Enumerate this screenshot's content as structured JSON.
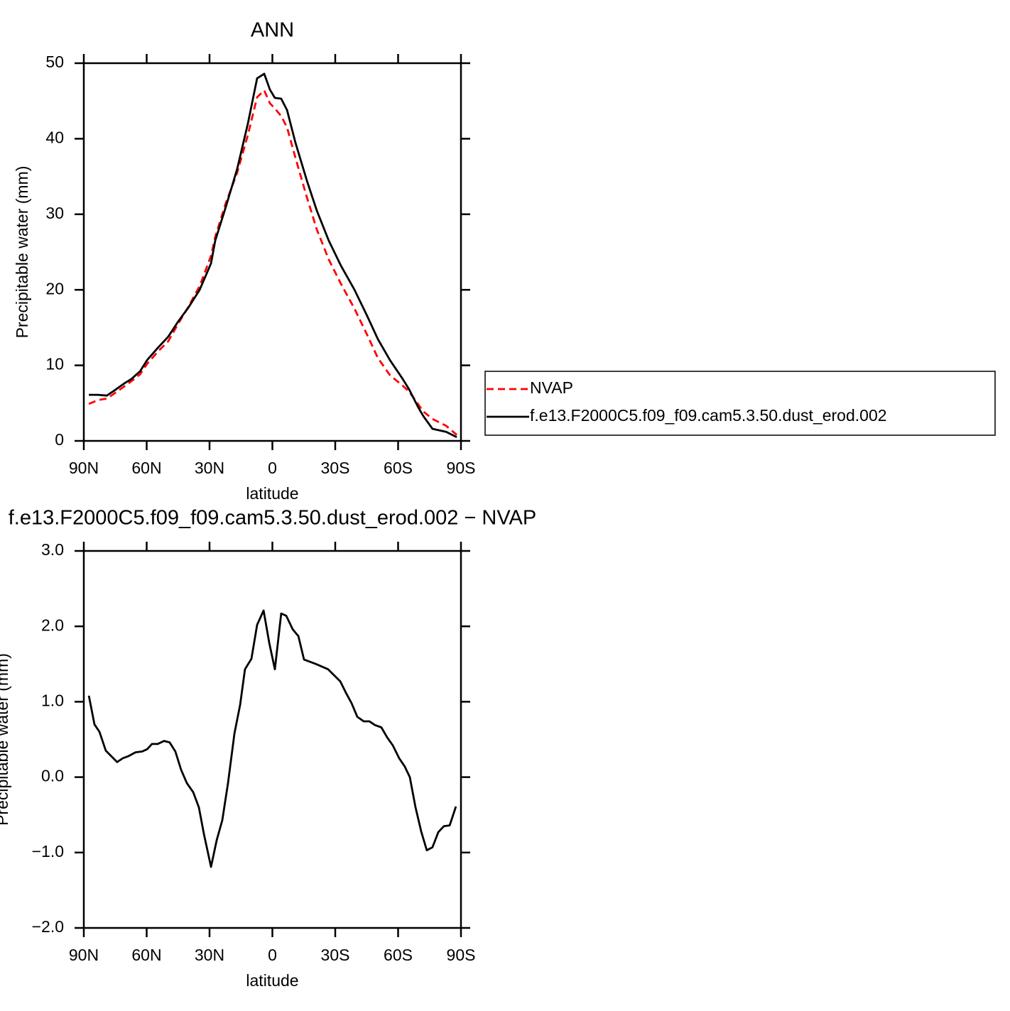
{
  "chart_data": [
    {
      "type": "line",
      "title": "ANN",
      "xlabel": "latitude",
      "ylabel": "Precipitable water (mm)",
      "x": [
        87.6,
        83.2,
        79,
        75.8,
        70.7,
        67.3,
        63.2,
        59.8,
        54.7,
        49.7,
        45,
        40.2,
        34.7,
        29.3,
        27.3,
        22.2,
        16.8,
        11.7,
        7.3,
        3.9,
        1.2,
        -1.2,
        -4.2,
        -7,
        -11,
        -16.4,
        -21.2,
        -26.9,
        -32.7,
        -39.2,
        -45.3,
        -50.3,
        -56.1,
        -62.2,
        -65.3,
        -69.7,
        -72,
        -76.4,
        -82.9,
        -88
      ],
      "series": [
        {
          "name": "NVAP",
          "color": "#ff0000",
          "line_style": "dashed",
          "values": [
            4.9,
            5.4,
            5.6,
            6.2,
            7.2,
            7.9,
            8.8,
            10.2,
            11.8,
            13.2,
            15.5,
            17.7,
            20.5,
            24.5,
            27.0,
            31.5,
            35.5,
            40.5,
            45.5,
            46.4,
            44.7,
            44.0,
            43.0,
            41.5,
            37.5,
            32.3,
            28.0,
            24.0,
            20.8,
            17.5,
            14.0,
            11.0,
            8.7,
            7.3,
            6.5,
            4.8,
            3.9,
            2.9,
            2.0,
            0.8
          ]
        },
        {
          "name": "f.e13.F2000C5.f09_f09.cam5.3.50.dust_erod.002",
          "color": "#000000",
          "line_style": "solid",
          "values": [
            6.1,
            6.1,
            6.0,
            6.6,
            7.6,
            8.2,
            9.2,
            10.7,
            12.3,
            13.8,
            15.8,
            17.6,
            20.0,
            23.5,
            26.5,
            31.0,
            36.0,
            42.0,
            48.0,
            48.6,
            46.5,
            45.4,
            45.3,
            43.8,
            39.5,
            34.5,
            30.5,
            26.5,
            23.2,
            20.0,
            16.5,
            13.5,
            10.7,
            8.2,
            6.8,
            4.4,
            3.3,
            1.6,
            1.2,
            0.5
          ]
        }
      ],
      "xlim": [
        90,
        -90
      ],
      "xticks": [
        {
          "value": 90,
          "label": "90N"
        },
        {
          "value": 60,
          "label": "60N"
        },
        {
          "value": 30,
          "label": "30N"
        },
        0,
        {
          "value": -30,
          "label": "30S"
        },
        {
          "value": -60,
          "label": "60S"
        },
        {
          "value": -90,
          "label": "90S"
        }
      ],
      "ylim": [
        0,
        50
      ],
      "yticks": [
        0,
        10,
        20,
        30,
        40,
        50
      ],
      "grid": false,
      "legend": "right"
    },
    {
      "type": "line",
      "title": "f.e13.F2000C5.f09_f09.cam5.3.50.dust_erod.002 − NVAP",
      "xlabel": "latitude",
      "ylabel": "Precipitable water (mm)",
      "x": [
        87.6,
        84.9,
        82.5,
        79.5,
        74.1,
        71.4,
        68.6,
        65.3,
        62.2,
        59.8,
        57.5,
        54.7,
        51.7,
        49,
        46.3,
        43.6,
        40.8,
        37.8,
        35.1,
        32.7,
        29.3,
        26.6,
        23.9,
        21.2,
        18.1,
        15.4,
        13.1,
        10,
        7.3,
        4.2,
        1.5,
        -1.2,
        -4.2,
        -6.6,
        -9.7,
        -12.4,
        -15.1,
        -20.8,
        -26.6,
        -32.4,
        -35.1,
        -37.8,
        -40.5,
        -43.6,
        -46.3,
        -49,
        -52,
        -54.7,
        -57.5,
        -60.5,
        -63.2,
        -65.6,
        -68.3,
        -71,
        -73.7,
        -76.4,
        -79.2,
        -81.9,
        -84.6,
        -87.6
      ],
      "values": [
        1.08,
        0.7,
        0.6,
        0.35,
        0.2,
        0.25,
        0.28,
        0.33,
        0.34,
        0.37,
        0.44,
        0.44,
        0.48,
        0.46,
        0.34,
        0.1,
        -0.08,
        -0.2,
        -0.4,
        -0.75,
        -1.19,
        -0.84,
        -0.57,
        -0.08,
        0.58,
        0.96,
        1.43,
        1.57,
        2.02,
        2.21,
        1.78,
        1.43,
        2.17,
        2.14,
        1.96,
        1.87,
        1.56,
        1.5,
        1.43,
        1.27,
        1.12,
        0.98,
        0.8,
        0.74,
        0.74,
        0.69,
        0.66,
        0.53,
        0.42,
        0.25,
        0.14,
        0.0,
        -0.4,
        -0.72,
        -0.97,
        -0.93,
        -0.73,
        -0.65,
        -0.64,
        -0.39
      ],
      "color": "#000000",
      "xlim": [
        90,
        -90
      ],
      "xticks": [
        {
          "value": 90,
          "label": "90N"
        },
        {
          "value": 60,
          "label": "60N"
        },
        {
          "value": 30,
          "label": "30N"
        },
        0,
        {
          "value": -30,
          "label": "30S"
        },
        {
          "value": -60,
          "label": "60S"
        },
        {
          "value": -90,
          "label": "90S"
        }
      ],
      "ylim": [
        -2,
        3
      ],
      "yticks": [
        {
          "value": -2,
          "label": "−2.0"
        },
        {
          "value": -1,
          "label": "−1.0"
        },
        {
          "value": 0,
          "label": "0.0"
        },
        {
          "value": 1,
          "label": "1.0"
        },
        {
          "value": 2,
          "label": "2.0"
        },
        {
          "value": 3,
          "label": "3.0"
        }
      ],
      "grid": false
    }
  ]
}
